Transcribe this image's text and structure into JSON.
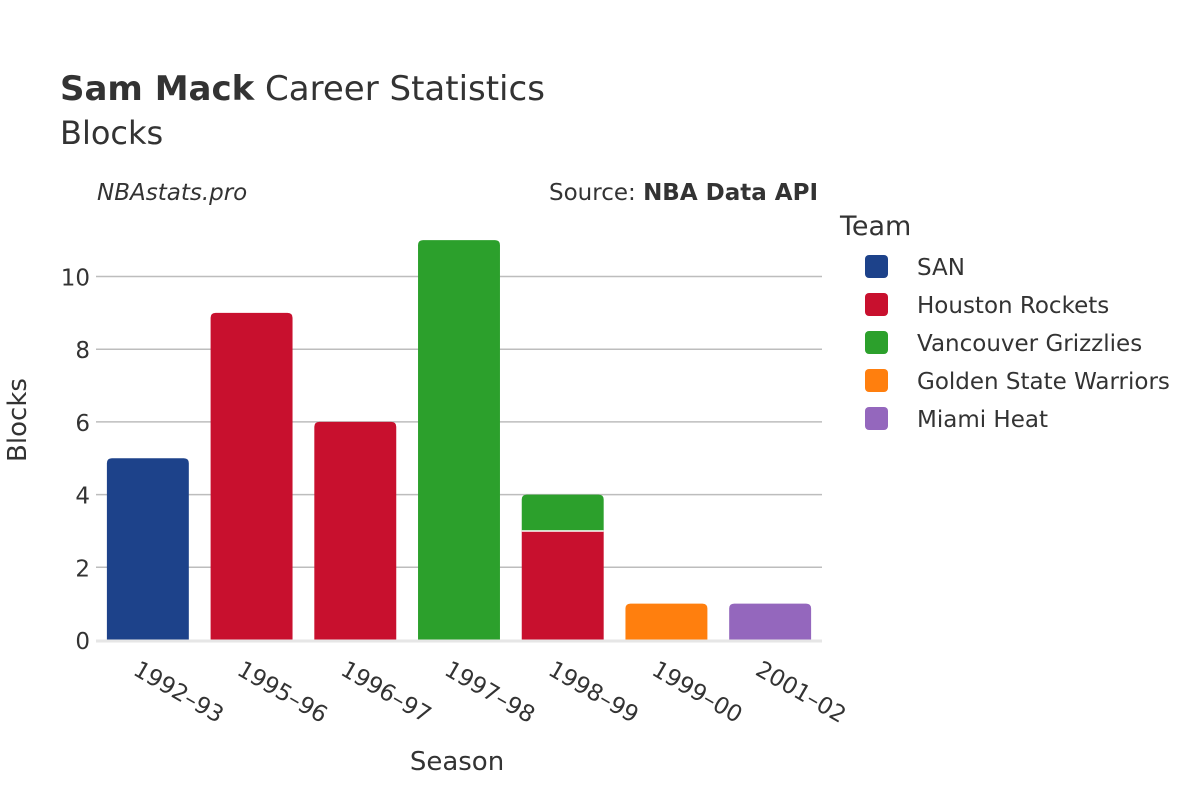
{
  "title": {
    "player": "Sam Mack",
    "rest": " Career Statistics",
    "subtitle": "Blocks"
  },
  "watermark": "NBAstats.pro",
  "source": {
    "prefix": "Source: ",
    "name": "NBA Data API"
  },
  "legend": {
    "title": "Team",
    "items": [
      {
        "name": "SAN",
        "color": "#1d428a"
      },
      {
        "name": "Houston Rockets",
        "color": "#c8102e"
      },
      {
        "name": "Vancouver Grizzlies",
        "color": "#2ca02c"
      },
      {
        "name": "Golden State Warriors",
        "color": "#ff7f0e"
      },
      {
        "name": "Miami Heat",
        "color": "#9467bd"
      }
    ]
  },
  "chart_data": {
    "type": "bar",
    "stacked": true,
    "title": "Sam Mack Career Statistics",
    "subtitle": "Blocks",
    "xlabel": "Season",
    "ylabel": "Blocks",
    "ylim": [
      0,
      11.5
    ],
    "yticks": [
      0,
      2,
      4,
      6,
      8,
      10
    ],
    "grid": true,
    "legend_position": "right",
    "categories": [
      "1992–93",
      "1995–96",
      "1996–97",
      "1997–98",
      "1998–99",
      "1999–00",
      "2001–02"
    ],
    "series": [
      {
        "name": "SAN",
        "color": "#1d428a",
        "values": [
          5,
          0,
          0,
          0,
          0,
          0,
          0
        ]
      },
      {
        "name": "Houston Rockets",
        "color": "#c8102e",
        "values": [
          0,
          9,
          6,
          0,
          3,
          0,
          0
        ]
      },
      {
        "name": "Vancouver Grizzlies",
        "color": "#2ca02c",
        "values": [
          0,
          0,
          0,
          11,
          1,
          0,
          0
        ]
      },
      {
        "name": "Golden State Warriors",
        "color": "#ff7f0e",
        "values": [
          0,
          0,
          0,
          0,
          0,
          1,
          0
        ]
      },
      {
        "name": "Miami Heat",
        "color": "#9467bd",
        "values": [
          0,
          0,
          0,
          0,
          0,
          0,
          1
        ]
      }
    ]
  }
}
